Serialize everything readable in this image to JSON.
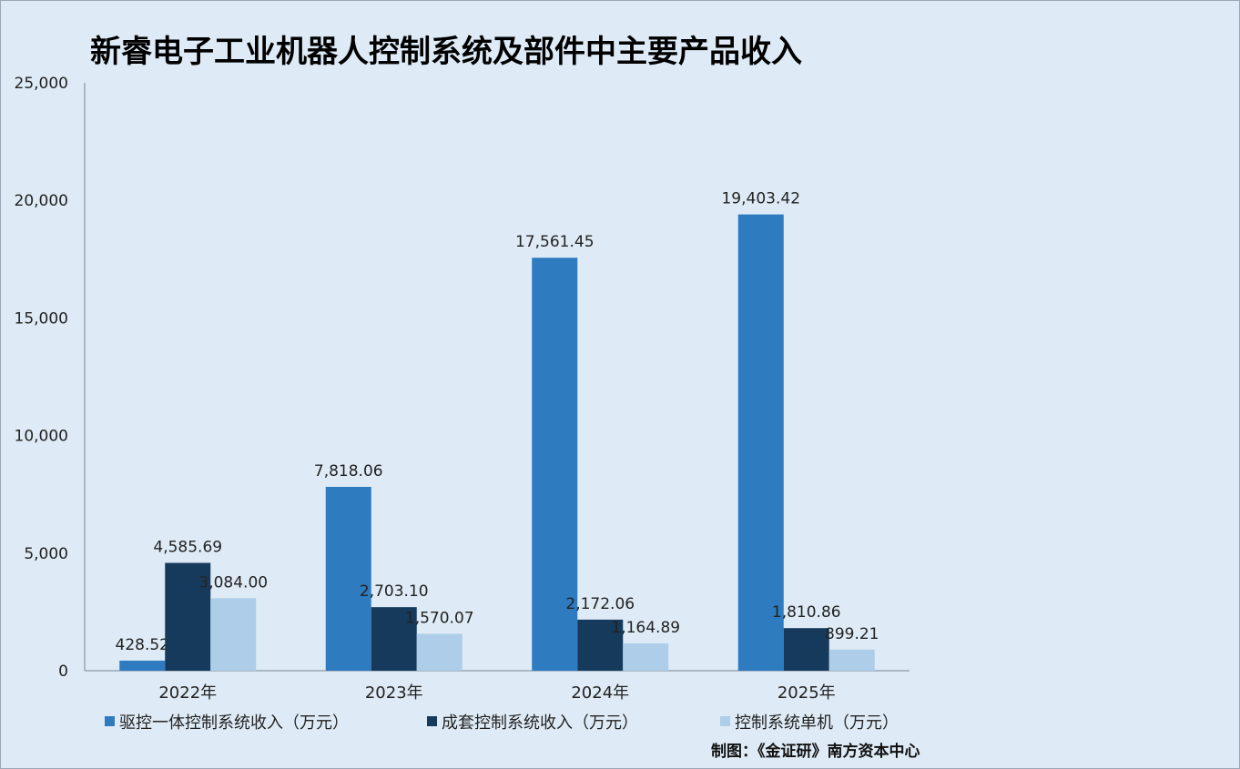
{
  "chart_data": {
    "type": "bar",
    "title": "新睿电子工业机器人控制系统及部件中主要产品收入",
    "categories": [
      "2022年",
      "2023年",
      "2024年",
      "2025年"
    ],
    "series": [
      {
        "name": "驱控一体控制系统收入（万元）",
        "color": "#2e7bbf",
        "values": [
          428.52,
          7818.06,
          17561.45,
          19403.42
        ],
        "labels": [
          "428.52",
          "7,818.06",
          "17,561.45",
          "19,403.42"
        ]
      },
      {
        "name": "成套控制系统收入（万元）",
        "color": "#163a5c",
        "values": [
          4585.69,
          2703.1,
          2172.06,
          1810.86
        ],
        "labels": [
          "4,585.69",
          "2,703.10",
          "2,172.06",
          "1,810.86"
        ]
      },
      {
        "name": "控制系统单机（万元）",
        "color": "#aecde9",
        "values": [
          3084.0,
          1570.07,
          1164.89,
          899.21
        ],
        "labels": [
          "3,084.00",
          "1,570.07",
          "1,164.89",
          "899.21"
        ]
      }
    ],
    "ylim": [
      0,
      25000
    ],
    "yticks": [
      0,
      5000,
      10000,
      15000,
      20000,
      25000
    ],
    "ytick_labels": [
      "0",
      "5,000",
      "10,000",
      "15,000",
      "20,000",
      "25,000"
    ],
    "grid": false,
    "legend_position": "bottom"
  },
  "credit": "制图：《金证研》南方资本中心"
}
